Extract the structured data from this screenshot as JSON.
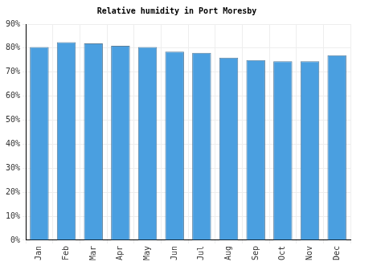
{
  "chart_data": {
    "type": "bar",
    "title": "Relative humidity in Port Moresby",
    "categories": [
      "Jan",
      "Feb",
      "Mar",
      "Apr",
      "May",
      "Jun",
      "Jul",
      "Aug",
      "Sep",
      "Oct",
      "Nov",
      "Dec"
    ],
    "values": [
      80.5,
      82.5,
      82,
      81,
      80.5,
      78.5,
      78,
      76,
      75,
      74.5,
      74.5,
      77
    ],
    "color": "#4a9fe0",
    "ylim": [
      0,
      90
    ],
    "yticks": [
      {
        "value": 0,
        "label": "0%"
      },
      {
        "value": 10,
        "label": "10%"
      },
      {
        "value": 20,
        "label": "20%"
      },
      {
        "value": 30,
        "label": "30%"
      },
      {
        "value": 40,
        "label": "40%"
      },
      {
        "value": 50,
        "label": "50%"
      },
      {
        "value": 60,
        "label": "60%"
      },
      {
        "value": 70,
        "label": "70%"
      },
      {
        "value": 80,
        "label": "80%"
      },
      {
        "value": 90,
        "label": "90%"
      }
    ],
    "grid": true
  }
}
